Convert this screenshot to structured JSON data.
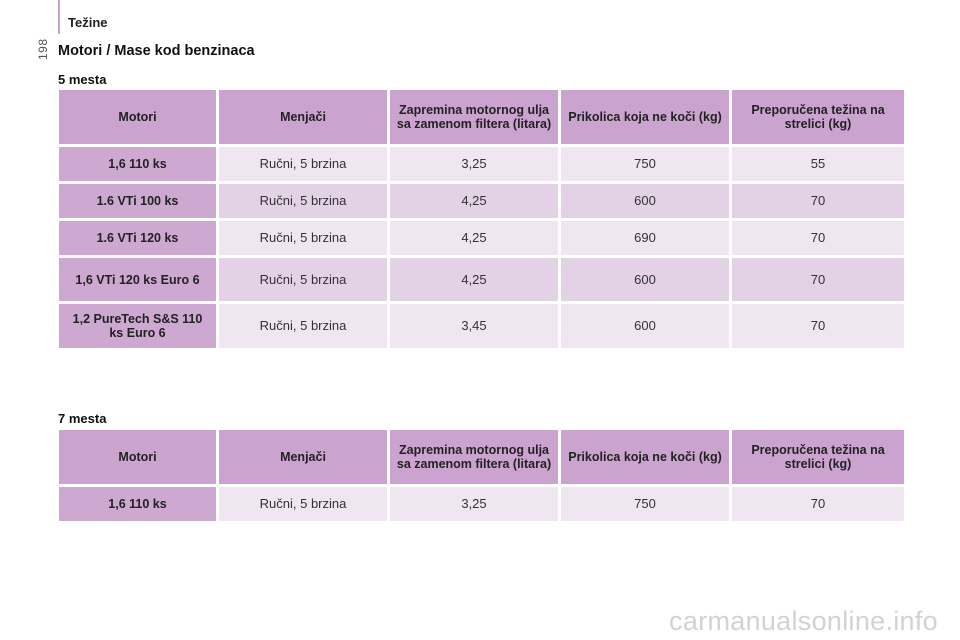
{
  "header": {
    "title": "Težine",
    "page_number": "198"
  },
  "main_title": "Motori / Mase kod benzinaca",
  "columns": [
    "Motori",
    "Menjači",
    "Zapremina motornog ulja sa zamenom filtera (litara)",
    "Prikolica koja ne koči (kg)",
    "Preporučena težina na strelici (kg)"
  ],
  "sections": [
    {
      "label": "5 mesta",
      "rows": [
        {
          "motor": "1,6 110 ks",
          "gearbox": "Ručni, 5 brzina",
          "oil": "3,25",
          "trailer": "750",
          "nose": "55"
        },
        {
          "motor": "1.6 VTi 100 ks",
          "gearbox": "Ručni, 5 brzina",
          "oil": "4,25",
          "trailer": "600",
          "nose": "70"
        },
        {
          "motor": "1.6 VTi 120 ks",
          "gearbox": "Ručni, 5 brzina",
          "oil": "4,25",
          "trailer": "690",
          "nose": "70"
        },
        {
          "motor": "1,6 VTi 120 ks Euro 6",
          "gearbox": "Ručni, 5 brzina",
          "oil": "4,25",
          "trailer": "600",
          "nose": "70"
        },
        {
          "motor": "1,2 PureTech S&S 110 ks Euro 6",
          "gearbox": "Ručni, 5 brzina",
          "oil": "3,45",
          "trailer": "600",
          "nose": "70"
        }
      ]
    },
    {
      "label": "7 mesta",
      "rows": [
        {
          "motor": "1,6 110 ks",
          "gearbox": "Ručni, 5 brzina",
          "oil": "3,25",
          "trailer": "750",
          "nose": "70"
        }
      ]
    }
  ],
  "watermark": "carmanualsonline.info"
}
